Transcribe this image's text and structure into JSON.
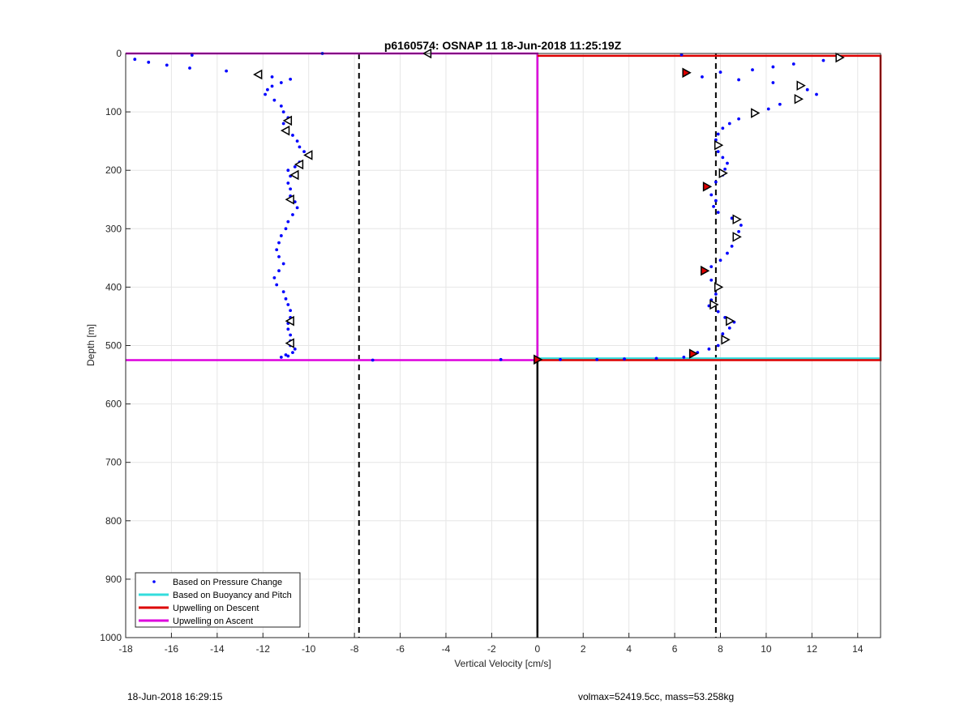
{
  "chart_data": {
    "type": "scatter",
    "title": "p6160574: OSNAP 11 18-Jun-2018 11:25:19Z",
    "xlabel": "Vertical Velocity [cm/s]",
    "ylabel": "Depth [m]",
    "xlim": [
      -18,
      15
    ],
    "ylim": [
      0,
      1000
    ],
    "y_reversed": true,
    "grid": true,
    "legend_position": "bottom-left",
    "xticks": [
      -18,
      -16,
      -14,
      -12,
      -10,
      -8,
      -6,
      -4,
      -2,
      0,
      2,
      4,
      6,
      8,
      10,
      12,
      14
    ],
    "yticks": [
      0,
      100,
      200,
      300,
      400,
      500,
      600,
      700,
      800,
      900,
      1000
    ],
    "legend": [
      {
        "label": "Based on Pressure Change",
        "style": "dot",
        "color": "#0000ff"
      },
      {
        "label": "Based on Buoyancy and Pitch",
        "style": "line",
        "color": "#33dddd"
      },
      {
        "label": "Upwelling on Descent",
        "style": "line",
        "color": "#dd0000"
      },
      {
        "label": "Upwelling on Ascent",
        "style": "line",
        "color": "#dd00dd"
      }
    ],
    "reference_lines": {
      "zero_x": 0,
      "dashed_x": [
        -7.8,
        7.8
      ],
      "bottom_depth": 525
    },
    "series": [
      {
        "name": "Upwelling on Ascent",
        "color": "#dd00dd",
        "points": [
          [
            -18,
            0
          ],
          [
            0,
            0
          ],
          [
            0,
            525
          ],
          [
            -18,
            525
          ]
        ]
      },
      {
        "name": "Based on Buoyancy and Pitch",
        "color": "#33dddd",
        "points": [
          [
            0,
            522
          ],
          [
            15,
            522
          ]
        ]
      },
      {
        "name": "Upwelling on Descent",
        "color": "#dd0000",
        "points": [
          [
            0,
            4
          ],
          [
            15,
            4
          ],
          [
            15,
            525
          ],
          [
            0,
            525
          ]
        ]
      },
      {
        "name": "Based on Pressure Change",
        "color": "#0000ff",
        "descent_profile": [
          [
            6.3,
            2
          ],
          [
            13.1,
            8
          ],
          [
            12.5,
            12
          ],
          [
            11.2,
            18
          ],
          [
            10.3,
            23
          ],
          [
            9.4,
            28
          ],
          [
            8.0,
            32
          ],
          [
            6.4,
            34
          ],
          [
            7.2,
            40
          ],
          [
            8.8,
            45
          ],
          [
            10.3,
            50
          ],
          [
            11.5,
            55
          ],
          [
            11.8,
            62
          ],
          [
            12.2,
            70
          ],
          [
            11.4,
            78
          ],
          [
            10.6,
            87
          ],
          [
            10.1,
            95
          ],
          [
            9.4,
            103
          ],
          [
            8.8,
            112
          ],
          [
            8.4,
            120
          ],
          [
            8.1,
            128
          ],
          [
            7.9,
            138
          ],
          [
            7.8,
            148
          ],
          [
            7.8,
            158
          ],
          [
            7.9,
            168
          ],
          [
            8.1,
            178
          ],
          [
            8.3,
            188
          ],
          [
            8.2,
            198
          ],
          [
            8.1,
            208
          ],
          [
            7.8,
            220
          ],
          [
            7.4,
            230
          ],
          [
            7.6,
            242
          ],
          [
            7.8,
            252
          ],
          [
            7.7,
            262
          ],
          [
            7.9,
            272
          ],
          [
            8.5,
            282
          ],
          [
            8.9,
            294
          ],
          [
            8.8,
            305
          ],
          [
            8.6,
            318
          ],
          [
            8.5,
            330
          ],
          [
            8.3,
            342
          ],
          [
            8.0,
            354
          ],
          [
            7.6,
            365
          ],
          [
            7.2,
            375
          ],
          [
            7.6,
            388
          ],
          [
            7.9,
            400
          ],
          [
            7.8,
            412
          ],
          [
            7.6,
            422
          ],
          [
            7.5,
            432
          ],
          [
            7.9,
            442
          ],
          [
            8.2,
            452
          ],
          [
            8.6,
            460
          ],
          [
            8.4,
            470
          ],
          [
            8.1,
            480
          ],
          [
            8.2,
            492
          ],
          [
            7.9,
            500
          ],
          [
            7.5,
            506
          ],
          [
            7.0,
            512
          ],
          [
            6.7,
            516
          ],
          [
            6.4,
            520
          ]
        ],
        "ascent_profile": [
          [
            -9.4,
            0
          ],
          [
            -15.1,
            3
          ],
          [
            -17.6,
            10
          ],
          [
            -17.0,
            15
          ],
          [
            -16.2,
            20
          ],
          [
            -15.2,
            25
          ],
          [
            -13.6,
            30
          ],
          [
            -12.2,
            36
          ],
          [
            -11.6,
            40
          ],
          [
            -10.8,
            44
          ],
          [
            -11.2,
            50
          ],
          [
            -11.6,
            56
          ],
          [
            -11.8,
            62
          ],
          [
            -11.9,
            70
          ],
          [
            -11.5,
            80
          ],
          [
            -11.2,
            90
          ],
          [
            -11.1,
            100
          ],
          [
            -10.9,
            110
          ],
          [
            -11.1,
            120
          ],
          [
            -11.0,
            130
          ],
          [
            -10.7,
            140
          ],
          [
            -10.5,
            150
          ],
          [
            -10.4,
            160
          ],
          [
            -10.2,
            168
          ],
          [
            -10.0,
            176
          ],
          [
            -10.4,
            186
          ],
          [
            -10.6,
            194
          ],
          [
            -10.9,
            200
          ],
          [
            -10.8,
            210
          ],
          [
            -10.9,
            222
          ],
          [
            -10.8,
            232
          ],
          [
            -10.8,
            244
          ],
          [
            -10.6,
            254
          ],
          [
            -10.5,
            264
          ],
          [
            -10.7,
            276
          ],
          [
            -10.9,
            288
          ],
          [
            -11.0,
            300
          ],
          [
            -11.2,
            312
          ],
          [
            -11.3,
            324
          ],
          [
            -11.4,
            336
          ],
          [
            -11.3,
            348
          ],
          [
            -11.1,
            360
          ],
          [
            -11.3,
            372
          ],
          [
            -11.5,
            384
          ],
          [
            -11.4,
            396
          ],
          [
            -11.1,
            408
          ],
          [
            -11.0,
            420
          ],
          [
            -10.9,
            430
          ],
          [
            -10.8,
            440
          ],
          [
            -10.8,
            452
          ],
          [
            -10.9,
            462
          ],
          [
            -10.9,
            472
          ],
          [
            -10.8,
            482
          ],
          [
            -10.8,
            492
          ],
          [
            -10.8,
            500
          ],
          [
            -10.6,
            506
          ],
          [
            -10.7,
            512
          ],
          [
            -11.0,
            516
          ],
          [
            -11.2,
            520
          ],
          [
            -10.9,
            518
          ]
        ],
        "bottom_samples": [
          [
            -7.2,
            525
          ],
          [
            -1.6,
            524
          ],
          [
            1.0,
            524
          ],
          [
            2.6,
            524
          ],
          [
            3.8,
            523
          ],
          [
            5.2,
            522
          ]
        ]
      }
    ],
    "descent_markers": [
      {
        "x": 6.5,
        "y": 33,
        "color": "#dd0000"
      },
      {
        "x": 13.2,
        "y": 7,
        "color": "#ffffff"
      },
      {
        "x": 11.5,
        "y": 55,
        "color": "#ffffff"
      },
      {
        "x": 11.4,
        "y": 78,
        "color": "#ffffff"
      },
      {
        "x": 9.5,
        "y": 102,
        "color": "#ffffff"
      },
      {
        "x": 7.9,
        "y": 157,
        "color": "#ffffff"
      },
      {
        "x": 8.1,
        "y": 205,
        "color": "#ffffff"
      },
      {
        "x": 7.4,
        "y": 228,
        "color": "#dd0000"
      },
      {
        "x": 8.7,
        "y": 284,
        "color": "#ffffff"
      },
      {
        "x": 8.7,
        "y": 314,
        "color": "#ffffff"
      },
      {
        "x": 7.3,
        "y": 372,
        "color": "#dd0000"
      },
      {
        "x": 7.9,
        "y": 400,
        "color": "#ffffff"
      },
      {
        "x": 7.7,
        "y": 430,
        "color": "#ffffff"
      },
      {
        "x": 8.4,
        "y": 458,
        "color": "#ffffff"
      },
      {
        "x": 8.2,
        "y": 490,
        "color": "#ffffff"
      },
      {
        "x": 6.8,
        "y": 514,
        "color": "#dd0000"
      },
      {
        "x": 0,
        "y": 524,
        "color": "#dd0000"
      }
    ],
    "ascent_markers": [
      {
        "x": -4.8,
        "y": 0
      },
      {
        "x": -12.2,
        "y": 36
      },
      {
        "x": -10.9,
        "y": 115
      },
      {
        "x": -11.0,
        "y": 132
      },
      {
        "x": -10.0,
        "y": 174
      },
      {
        "x": -10.4,
        "y": 190
      },
      {
        "x": -10.6,
        "y": 208
      },
      {
        "x": -10.8,
        "y": 250
      },
      {
        "x": -10.8,
        "y": 458
      },
      {
        "x": -10.8,
        "y": 496
      }
    ]
  },
  "footer": {
    "timestamp": "18-Jun-2018 16:29:15",
    "params": "volmax=52419.5cc, mass=53.258kg"
  }
}
